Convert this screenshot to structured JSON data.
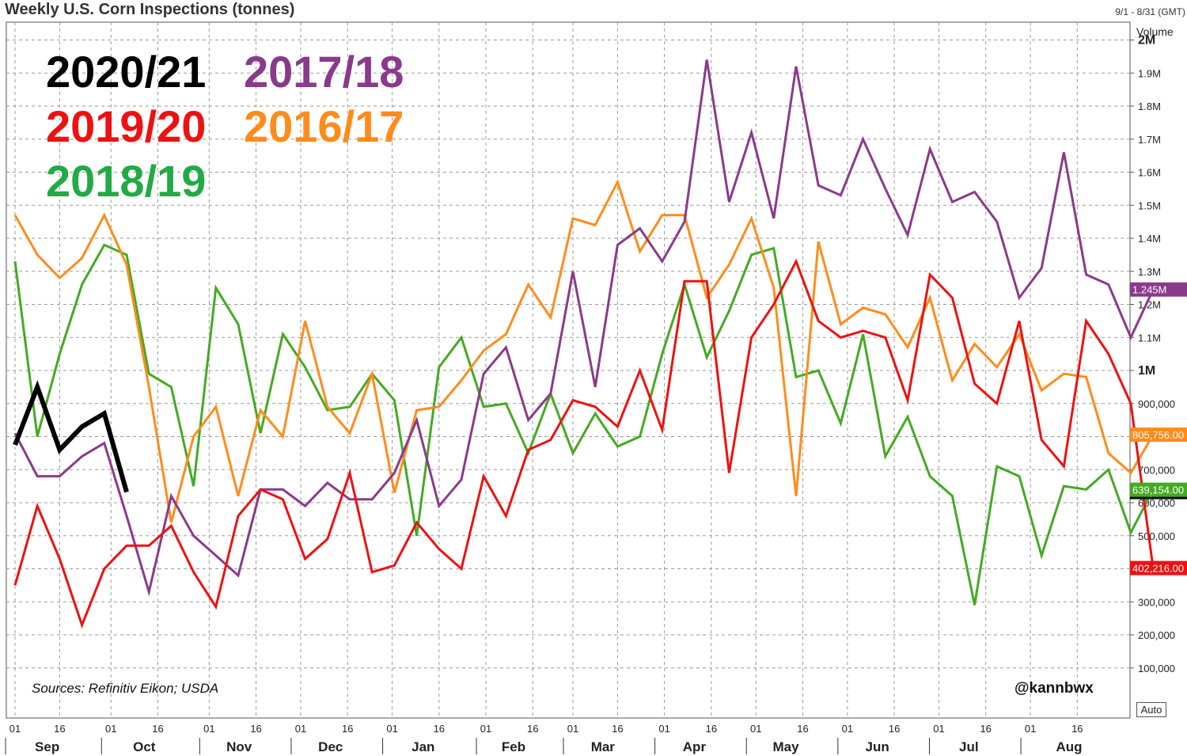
{
  "title": "Weekly U.S. Corn Inspections (tonnes)",
  "date_range": "9/1 - 8/31 (GMT)",
  "source_note": "Sources: Refinitiv Eikon; USDA",
  "handle": "@kannbwx",
  "auto_label": "Auto",
  "chart_data": {
    "type": "line",
    "title": "Weekly U.S. Corn Inspections (tonnes)",
    "ylabel": "Volume",
    "xlabel": "",
    "ylim": [
      0,
      2200000
    ],
    "x_unit": "week index (1 = first week of Sep)",
    "y_ticks": [
      {
        "value": 100000,
        "label": "100,000",
        "bold": false
      },
      {
        "value": 200000,
        "label": "200,000",
        "bold": false
      },
      {
        "value": 300000,
        "label": "300,000",
        "bold": false
      },
      {
        "value": 400000,
        "label": "400,000",
        "bold": false
      },
      {
        "value": 500000,
        "label": "500,000",
        "bold": false
      },
      {
        "value": 600000,
        "label": "600,000",
        "bold": false
      },
      {
        "value": 700000,
        "label": "700,000",
        "bold": false
      },
      {
        "value": 800000,
        "label": "800,000",
        "bold": false
      },
      {
        "value": 900000,
        "label": "900,000",
        "bold": false
      },
      {
        "value": 1000000,
        "label": "1M",
        "bold": true
      },
      {
        "value": 1100000,
        "label": "1.1M",
        "bold": false
      },
      {
        "value": 1200000,
        "label": "1.2M",
        "bold": false
      },
      {
        "value": 1300000,
        "label": "1.3M",
        "bold": false
      },
      {
        "value": 1400000,
        "label": "1.4M",
        "bold": false
      },
      {
        "value": 1500000,
        "label": "1.5M",
        "bold": false
      },
      {
        "value": 1600000,
        "label": "1.6M",
        "bold": false
      },
      {
        "value": 1700000,
        "label": "1.7M",
        "bold": false
      },
      {
        "value": 1800000,
        "label": "1.8M",
        "bold": false
      },
      {
        "value": 1900000,
        "label": "1.9M",
        "bold": false
      },
      {
        "value": 2000000,
        "label": "2M",
        "bold": true
      }
    ],
    "months": [
      {
        "label": "Sep",
        "start": 1
      },
      {
        "label": "Oct",
        "start": 5.3
      },
      {
        "label": "Nov",
        "start": 9.7
      },
      {
        "label": "Dec",
        "start": 13.8
      },
      {
        "label": "Jan",
        "start": 17.9
      },
      {
        "label": "Feb",
        "start": 22.1
      },
      {
        "label": "Mar",
        "start": 26.0
      },
      {
        "label": "Apr",
        "start": 30.1
      },
      {
        "label": "May",
        "start": 34.2
      },
      {
        "label": "Jun",
        "start": 38.3
      },
      {
        "label": "Jul",
        "start": 42.4
      },
      {
        "label": "Aug",
        "start": 46.5
      }
    ],
    "day_ticks": [
      {
        "x": 1,
        "label": "01"
      },
      {
        "x": 3,
        "label": "16"
      },
      {
        "x": 5.3,
        "label": "01"
      },
      {
        "x": 7.4,
        "label": "16"
      },
      {
        "x": 9.7,
        "label": "01"
      },
      {
        "x": 11.8,
        "label": "16"
      },
      {
        "x": 13.8,
        "label": "01"
      },
      {
        "x": 15.9,
        "label": "16"
      },
      {
        "x": 17.9,
        "label": "01"
      },
      {
        "x": 20.0,
        "label": "16"
      },
      {
        "x": 22.1,
        "label": "01"
      },
      {
        "x": 24.2,
        "label": "16"
      },
      {
        "x": 26.0,
        "label": "01"
      },
      {
        "x": 28.0,
        "label": "16"
      },
      {
        "x": 30.1,
        "label": "01"
      },
      {
        "x": 32.2,
        "label": "16"
      },
      {
        "x": 34.2,
        "label": "01"
      },
      {
        "x": 36.3,
        "label": "16"
      },
      {
        "x": 38.3,
        "label": "01"
      },
      {
        "x": 40.4,
        "label": "16"
      },
      {
        "x": 42.4,
        "label": "01"
      },
      {
        "x": 44.5,
        "label": "16"
      },
      {
        "x": 46.5,
        "label": "01"
      },
      {
        "x": 48.6,
        "label": "16"
      }
    ],
    "series": [
      {
        "name": "2020/21",
        "color": "#000000",
        "width": 6,
        "values": [
          775000,
          950000,
          760000,
          830000,
          870000,
          632184
        ]
      },
      {
        "name": "2019/20",
        "color": "#ee1111",
        "width": 3,
        "last_label": "402,216.00",
        "values": [
          350000,
          590000,
          430000,
          230000,
          400000,
          470000,
          470000,
          530000,
          390000,
          285000,
          560000,
          640000,
          610000,
          430000,
          490000,
          690000,
          390000,
          410000,
          540000,
          460000,
          400000,
          680000,
          560000,
          760000,
          790000,
          910000,
          890000,
          830000,
          1000000,
          820000,
          1270000,
          1270000,
          690000,
          1100000,
          1200000,
          1330000,
          1150000,
          1100000,
          1120000,
          1100000,
          910000,
          1290000,
          1220000,
          960000,
          900000,
          1150000,
          790000,
          710000,
          1150000,
          1050000,
          900000,
          402216
        ]
      },
      {
        "name": "2018/19",
        "color": "#44aa22",
        "width": 3,
        "last_label": "639,154.00",
        "values": [
          1330000,
          800000,
          1050000,
          1260000,
          1380000,
          1350000,
          990000,
          950000,
          650000,
          1250000,
          1140000,
          810000,
          1110000,
          1010000,
          880000,
          890000,
          990000,
          910000,
          500000,
          1010000,
          1100000,
          890000,
          900000,
          750000,
          930000,
          750000,
          870000,
          770000,
          800000,
          1050000,
          1260000,
          1040000,
          1180000,
          1350000,
          1370000,
          980000,
          1000000,
          840000,
          1110000,
          740000,
          860000,
          680000,
          620000,
          290000,
          710000,
          680000,
          440000,
          650000,
          640000,
          700000,
          510000,
          639154
        ]
      },
      {
        "name": "2017/18",
        "color": "#8a3a8a",
        "width": 3,
        "last_label": "1.245M",
        "values": [
          810000,
          680000,
          680000,
          740000,
          780000,
          560000,
          330000,
          620000,
          500000,
          440000,
          380000,
          640000,
          640000,
          590000,
          660000,
          610000,
          610000,
          690000,
          850000,
          590000,
          670000,
          990000,
          1070000,
          850000,
          930000,
          1300000,
          950000,
          1380000,
          1430000,
          1330000,
          1450000,
          1940000,
          1510000,
          1720000,
          1460000,
          1920000,
          1560000,
          1530000,
          1700000,
          1550000,
          1410000,
          1670000,
          1510000,
          1540000,
          1450000,
          1220000,
          1310000,
          1660000,
          1290000,
          1260000,
          1100000,
          1245000
        ]
      },
      {
        "name": "2016/17",
        "color": "#ff8c1a",
        "width": 3,
        "last_label": "805,756.00",
        "values": [
          1470000,
          1350000,
          1280000,
          1340000,
          1470000,
          1320000,
          950000,
          540000,
          800000,
          890000,
          620000,
          880000,
          800000,
          1150000,
          890000,
          810000,
          990000,
          630000,
          880000,
          890000,
          970000,
          1060000,
          1110000,
          1260000,
          1160000,
          1460000,
          1440000,
          1570000,
          1360000,
          1470000,
          1470000,
          1220000,
          1320000,
          1460000,
          1250000,
          620000,
          1390000,
          1140000,
          1190000,
          1170000,
          1070000,
          1220000,
          970000,
          1080000,
          1010000,
          1110000,
          940000,
          990000,
          980000,
          750000,
          690000,
          805756
        ]
      }
    ]
  }
}
